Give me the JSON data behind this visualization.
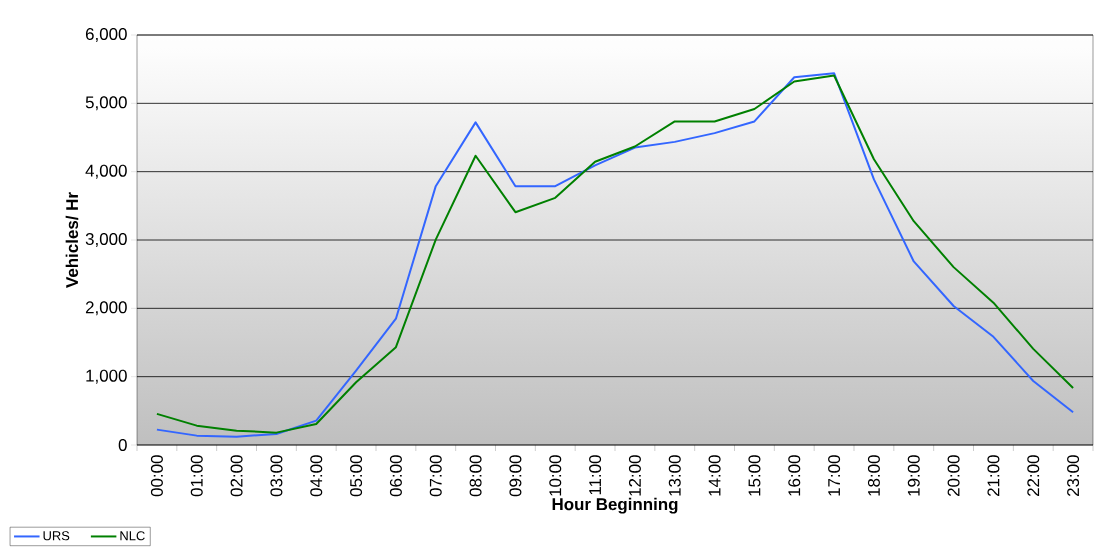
{
  "chart_data": {
    "type": "line",
    "xlabel": "Hour Beginning",
    "ylabel": "Vehicles/ Hr",
    "categories": [
      "00:00",
      "01:00",
      "02:00",
      "03:00",
      "04:00",
      "05:00",
      "06:00",
      "07:00",
      "08:00",
      "09:00",
      "10:00",
      "11:00",
      "12:00",
      "13:00",
      "14:00",
      "15:00",
      "16:00",
      "17:00",
      "18:00",
      "19:00",
      "20:00",
      "21:00",
      "22:00",
      "23:00"
    ],
    "series": [
      {
        "name": "URS",
        "color": "#3366ff",
        "values": [
          225,
          137,
          122,
          161,
          357,
          1090,
          1848,
          3788,
          4721,
          3788,
          3788,
          4093,
          4353,
          4436,
          4564,
          4735,
          5382,
          5441,
          3887,
          2686,
          2034,
          1583,
          936,
          480
        ]
      },
      {
        "name": "NLC",
        "color": "#008000",
        "values": [
          455,
          283,
          210,
          181,
          308,
          919,
          1432,
          3006,
          4233,
          3407,
          3617,
          4145,
          4368,
          4735,
          4735,
          4917,
          5319,
          5407,
          4181,
          3275,
          2603,
          2083,
          1407,
          833
        ]
      }
    ],
    "ylim": [
      0,
      6000
    ],
    "yticks": [
      0,
      {
        "value": 1000,
        "label": "1,000"
      },
      {
        "value": 2000,
        "label": "2,000"
      },
      {
        "value": 3000,
        "label": "3,000"
      },
      {
        "value": 4000,
        "label": "4,000"
      },
      {
        "value": 5000,
        "label": "5,000"
      },
      {
        "value": 6000,
        "label": "6,000"
      }
    ],
    "grid": "y",
    "legend": "bottom left",
    "marker": "none",
    "line_style": "solid"
  }
}
